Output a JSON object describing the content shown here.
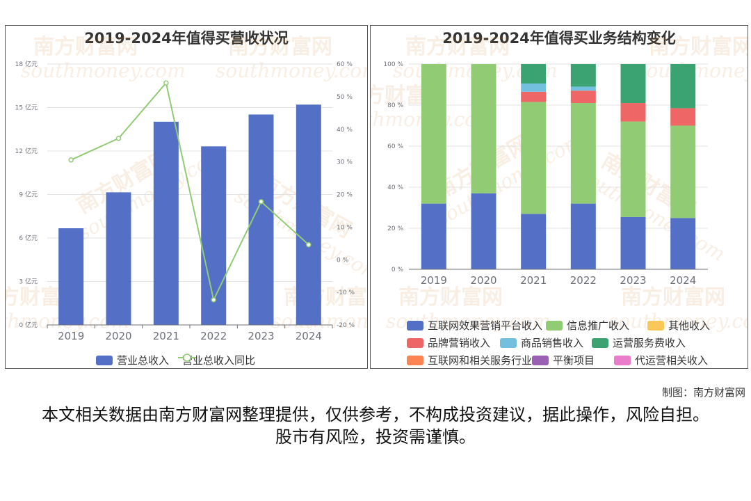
{
  "watermark": {
    "brand": "南方财富网",
    "url": "southmoney.com"
  },
  "chart_data": [
    {
      "type": "bar",
      "title": "2019-2024年值得买营收状况",
      "categories": [
        "2019",
        "2020",
        "2021",
        "2022",
        "2023",
        "2024"
      ],
      "series": [
        {
          "name": "营业总收入",
          "kind": "bar",
          "axis": "left",
          "color": "#5470c6",
          "values": [
            6.67,
            9.15,
            14.02,
            12.32,
            14.52,
            15.2
          ]
        },
        {
          "name": "营业总收入同比",
          "kind": "line",
          "axis": "right",
          "color": "#91cc75",
          "values": [
            30.6,
            37.2,
            54.2,
            -12.3,
            17.8,
            4.6
          ]
        }
      ],
      "y_left": {
        "min": 0,
        "max": 18,
        "ticks": [
          0,
          3,
          6,
          9,
          12,
          15,
          18
        ],
        "unit": "亿元"
      },
      "y_right": {
        "min": -20,
        "max": 60,
        "ticks": [
          -20,
          -10,
          0,
          10,
          20,
          30,
          40,
          50,
          60
        ],
        "unit": "%"
      },
      "grid": true,
      "legend_position": "bottom"
    },
    {
      "type": "bar",
      "stacked": true,
      "title": "2019-2024年值得买业务结构变化",
      "categories": [
        "2019",
        "2020",
        "2021",
        "2022",
        "2023",
        "2024"
      ],
      "y": {
        "min": 0,
        "max": 100,
        "ticks": [
          0,
          20,
          40,
          60,
          80,
          100
        ],
        "unit": "%"
      },
      "series": [
        {
          "name": "互联网效果营销平台收入",
          "color": "#5470c6",
          "values": [
            32,
            37,
            27,
            32,
            25.5,
            25
          ]
        },
        {
          "name": "信息推广收入",
          "color": "#91cc75",
          "values": [
            68,
            63,
            54.5,
            49,
            46.5,
            45
          ]
        },
        {
          "name": "其他收入",
          "color": "#fac858",
          "values": [
            0,
            0,
            0,
            0,
            0,
            0
          ]
        },
        {
          "name": "品牌营销收入",
          "color": "#ee6666",
          "values": [
            0,
            0,
            5,
            6,
            9,
            8.5
          ]
        },
        {
          "name": "商品销售收入",
          "color": "#73c0de",
          "values": [
            0,
            0,
            4,
            2,
            0,
            0
          ]
        },
        {
          "name": "运营服务费收入",
          "color": "#3ba272",
          "values": [
            0,
            0,
            9.5,
            11,
            19,
            21.5
          ]
        },
        {
          "name": "互联网和相关服务行业",
          "color": "#fc8452",
          "values": [
            0,
            0,
            0,
            0,
            0,
            0
          ]
        },
        {
          "name": "平衡项目",
          "color": "#9a60b4",
          "values": [
            0,
            0,
            0,
            0,
            0,
            0
          ]
        },
        {
          "name": "代运营相关收入",
          "color": "#ea7ccc",
          "values": [
            0,
            0,
            0,
            0,
            0,
            0
          ]
        }
      ],
      "grid": true,
      "legend_position": "bottom"
    }
  ],
  "credit": "制图：南方财富网",
  "disclaimer": "本文相关数据由南方财富网整理提供，仅供参考，不构成投资建议，据此操作，风险自担。股市有风险，投资需谨慎。"
}
